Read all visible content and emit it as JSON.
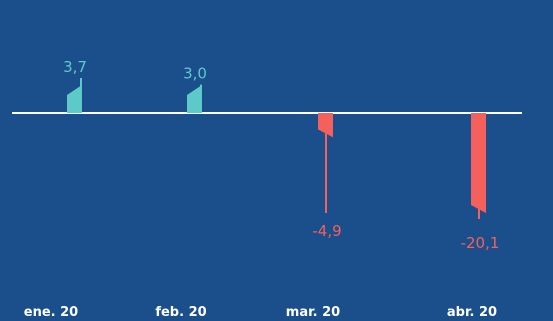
{
  "chart_data": {
    "type": "bar",
    "categories": [
      "ene. 20",
      "feb. 20",
      "mar. 20",
      "abr. 20"
    ],
    "values": [
      3.7,
      3.0,
      -4.9,
      -20.1
    ],
    "value_labels": [
      "3,7",
      "3,0",
      "-4,9",
      "-20,1"
    ],
    "title": "",
    "xlabel": "",
    "ylabel": "",
    "grid": false,
    "legend": "none"
  },
  "colors": {
    "background": "#1a4f8b",
    "positive": "#5ec9c9",
    "negative": "#f4605c",
    "baseline": "#ffffff",
    "tick_text": "#ffffff"
  }
}
